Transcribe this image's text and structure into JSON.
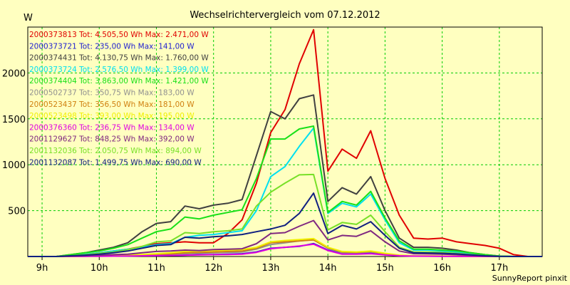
{
  "chart_data": {
    "type": "line",
    "title": "Wechselrichtervergleich vom 07.12.2012",
    "ylabel": "W",
    "xlabel": "",
    "footer": "SunnyReport pinxit",
    "grid": true,
    "legend_position": "top-left",
    "ylim": [
      0,
      2500
    ],
    "yticks": [
      500,
      1000,
      1500,
      2000
    ],
    "xlim": [
      8.75,
      17.75
    ],
    "xticks": [
      {
        "value": 9,
        "label": "9h"
      },
      {
        "value": 10,
        "label": "10h"
      },
      {
        "value": 11,
        "label": "11h"
      },
      {
        "value": 12,
        "label": "12h"
      },
      {
        "value": 13,
        "label": "13h"
      },
      {
        "value": 14,
        "label": "14h"
      },
      {
        "value": 15,
        "label": "15h"
      },
      {
        "value": 16,
        "label": "16h"
      },
      {
        "value": 17,
        "label": "17h"
      }
    ],
    "x": [
      8.75,
      9.0,
      9.25,
      9.5,
      9.75,
      10.0,
      10.25,
      10.5,
      10.75,
      11.0,
      11.25,
      11.5,
      11.75,
      12.0,
      12.25,
      12.5,
      12.75,
      13.0,
      13.25,
      13.5,
      13.75,
      14.0,
      14.25,
      14.5,
      14.75,
      15.0,
      15.25,
      15.5,
      15.75,
      16.0,
      16.25,
      16.5,
      16.75,
      17.0,
      17.25,
      17.5,
      17.75
    ],
    "series": [
      {
        "name": "2000373813 Tot: 4.505,50 Wh Max: 2.471,00 W",
        "color": "#e00000",
        "values": [
          0,
          0,
          0,
          10,
          20,
          40,
          60,
          80,
          110,
          140,
          150,
          160,
          150,
          150,
          250,
          400,
          800,
          1350,
          1600,
          2100,
          2471,
          930,
          1170,
          1070,
          1370,
          850,
          450,
          200,
          190,
          200,
          160,
          140,
          120,
          90,
          20,
          0,
          0
        ]
      },
      {
        "name": "2000373721 Tot: 235,00 Wh Max: 141,00 W",
        "color": "#1e1ed0",
        "values": [
          0,
          0,
          0,
          1,
          2,
          3,
          4,
          5,
          8,
          10,
          12,
          15,
          20,
          22,
          25,
          30,
          50,
          90,
          100,
          110,
          141,
          70,
          30,
          30,
          35,
          20,
          10,
          5,
          4,
          3,
          2,
          1,
          0,
          0,
          0,
          0,
          0
        ]
      },
      {
        "name": "2000374431 Tot: 4.130,75 Wh Max: 1.760,00 W",
        "color": "#404040",
        "values": [
          0,
          0,
          0,
          20,
          40,
          70,
          100,
          150,
          270,
          360,
          380,
          550,
          520,
          560,
          580,
          620,
          1100,
          1580,
          1500,
          1720,
          1760,
          600,
          750,
          680,
          870,
          500,
          200,
          100,
          100,
          90,
          70,
          40,
          20,
          5,
          0,
          0,
          0
        ]
      },
      {
        "name": "2000373724 Tot: 2.576,50 Wh Max: 1.399,00 W",
        "color": "#00e0f0",
        "values": [
          0,
          0,
          0,
          10,
          25,
          40,
          60,
          80,
          100,
          130,
          140,
          210,
          230,
          240,
          260,
          280,
          500,
          870,
          980,
          1200,
          1399,
          470,
          580,
          540,
          680,
          400,
          150,
          70,
          70,
          60,
          50,
          30,
          15,
          5,
          0,
          0,
          0
        ]
      },
      {
        "name": "2000374404 Tot: 3.863,00 Wh Max: 1.421,00 W",
        "color": "#18e018",
        "values": [
          0,
          0,
          0,
          20,
          40,
          60,
          90,
          130,
          200,
          270,
          300,
          430,
          410,
          450,
          480,
          510,
          850,
          1280,
          1280,
          1390,
          1421,
          480,
          600,
          560,
          710,
          420,
          170,
          80,
          80,
          70,
          60,
          40,
          20,
          5,
          0,
          0,
          0
        ]
      },
      {
        "name": "2000502737 Tot: 350,75 Wh Max: 183,00 W",
        "color": "#909090",
        "values": [
          0,
          0,
          0,
          2,
          4,
          6,
          8,
          10,
          15,
          20,
          25,
          30,
          35,
          40,
          45,
          50,
          80,
          130,
          150,
          170,
          183,
          90,
          40,
          40,
          50,
          30,
          12,
          6,
          5,
          4,
          3,
          2,
          1,
          0,
          0,
          0,
          0
        ]
      },
      {
        "name": "2000523437 Tot: 356,50 Wh Max: 181,00 W",
        "color": "#d08010",
        "values": [
          0,
          0,
          0,
          2,
          4,
          6,
          8,
          12,
          18,
          25,
          30,
          40,
          45,
          50,
          55,
          60,
          90,
          150,
          160,
          170,
          181,
          95,
          50,
          45,
          55,
          30,
          12,
          6,
          5,
          4,
          3,
          2,
          1,
          0,
          0,
          0,
          0
        ]
      },
      {
        "name": "2000523498 Tot: 393,00 Wh Max: 195,00 W",
        "color": "#f0f000",
        "values": [
          0,
          0,
          0,
          2,
          4,
          6,
          10,
          15,
          22,
          30,
          40,
          55,
          60,
          65,
          70,
          75,
          100,
          160,
          175,
          185,
          195,
          100,
          55,
          50,
          60,
          35,
          15,
          7,
          6,
          5,
          4,
          2,
          1,
          0,
          0,
          0,
          0
        ]
      },
      {
        "name": "2000376360 Tot: 236,75 Wh Max: 134,00 W",
        "color": "#e000e0",
        "values": [
          0,
          0,
          0,
          1,
          2,
          3,
          4,
          5,
          8,
          10,
          12,
          15,
          18,
          20,
          22,
          25,
          45,
          85,
          100,
          115,
          134,
          65,
          25,
          25,
          30,
          18,
          8,
          4,
          3,
          2,
          2,
          1,
          0,
          0,
          0,
          0,
          0
        ]
      },
      {
        "name": "2001129627 Tot: 848,25 Wh Max: 392,00 W",
        "color": "#802880",
        "values": [
          0,
          0,
          0,
          5,
          10,
          15,
          20,
          25,
          40,
          55,
          60,
          70,
          65,
          75,
          80,
          85,
          140,
          250,
          260,
          330,
          392,
          180,
          230,
          220,
          280,
          160,
          60,
          30,
          28,
          25,
          20,
          12,
          5,
          0,
          0,
          0,
          0
        ]
      },
      {
        "name": "2001132036 Tot: 2.050,75 Wh Max: 894,00 W",
        "color": "#78e028",
        "values": [
          0,
          0,
          0,
          10,
          20,
          35,
          50,
          75,
          110,
          160,
          170,
          260,
          250,
          270,
          280,
          300,
          550,
          700,
          800,
          890,
          894,
          290,
          370,
          350,
          450,
          270,
          100,
          50,
          48,
          45,
          35,
          22,
          10,
          2,
          0,
          0,
          0
        ]
      },
      {
        "name": "2001132087 Tot: 1.499,75 Wh Max: 690,00 W",
        "color": "#102080",
        "values": [
          0,
          0,
          0,
          8,
          15,
          25,
          40,
          60,
          90,
          120,
          130,
          210,
          200,
          215,
          225,
          240,
          270,
          300,
          340,
          470,
          690,
          250,
          340,
          300,
          380,
          230,
          90,
          40,
          38,
          35,
          28,
          18,
          8,
          2,
          0,
          0,
          0
        ]
      }
    ]
  }
}
